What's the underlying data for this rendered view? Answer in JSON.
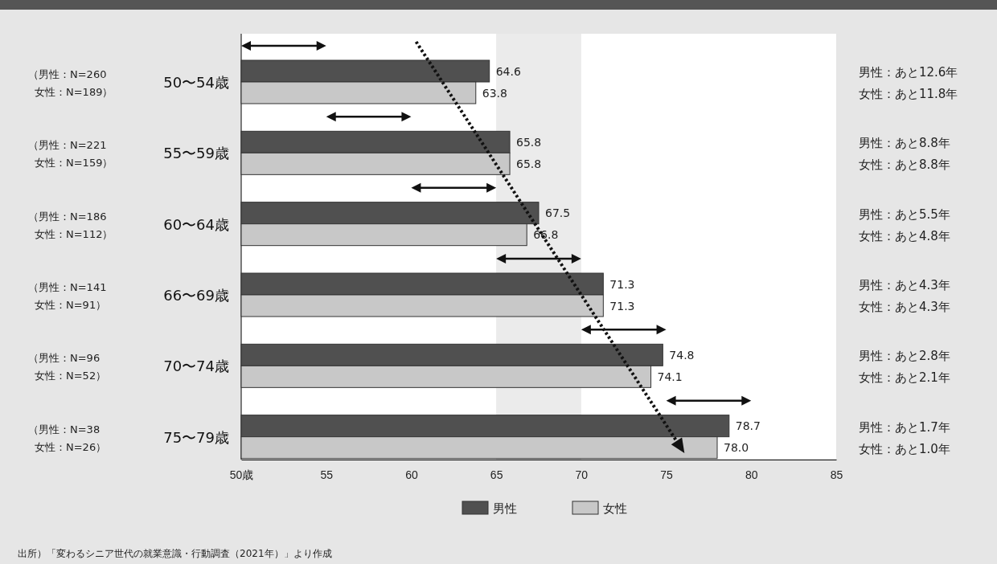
{
  "chart_data": {
    "type": "bar",
    "orientation": "horizontal",
    "categories": [
      "50〜54歳",
      "55〜59歳",
      "60〜64歳",
      "66〜69歳",
      "70〜74歳",
      "75〜79歳"
    ],
    "series": [
      {
        "name": "男性",
        "color": "#505050",
        "values": [
          64.6,
          65.8,
          67.5,
          71.3,
          74.8,
          78.7
        ],
        "value_labels": [
          "64.6",
          "65.8",
          "67.5",
          "71.3",
          "74.8",
          "78.7"
        ]
      },
      {
        "name": "女性",
        "color": "#c8c8c8",
        "values": [
          63.8,
          65.8,
          66.8,
          71.3,
          74.1,
          78.0
        ],
        "value_labels": [
          "63.8",
          "65.8",
          "66.8",
          "71.3",
          "74.1",
          "78.0"
        ]
      }
    ],
    "xlim": [
      50,
      85
    ],
    "xticks": [
      {
        "value": 50,
        "label": "50歳"
      },
      55,
      60,
      65,
      70,
      75,
      80,
      85
    ],
    "legend": "bottom",
    "bands": [
      {
        "axis": "x",
        "from": 65,
        "to": 70,
        "color": "#ebebeb"
      }
    ],
    "annotations": [
      "（男性：N=260",
      "女性：N=189）",
      "（男性：N=221",
      "女性：N=159）",
      "（男性：N=186",
      "女性：N=112）",
      "（男性：N=141",
      "女性：N=91）",
      "（男性：N=96",
      "女性：N=52）",
      "（男性：N=38",
      "女性：N=26）",
      "男性：あと12.6年",
      "女性：あと11.8年",
      "男性：あと8.8年",
      "女性：あと8.8年",
      "男性：あと5.5年",
      "女性：あと4.8年",
      "男性：あと4.3年",
      "女性：あと4.3年",
      "男性：あと2.8年",
      "女性：あと2.1年",
      "男性：あと1.7年",
      "女性：あと1.0年",
      "出所）「変わるシニア世代の就業意識・行動調査（2021年）」より作成"
    ]
  }
}
